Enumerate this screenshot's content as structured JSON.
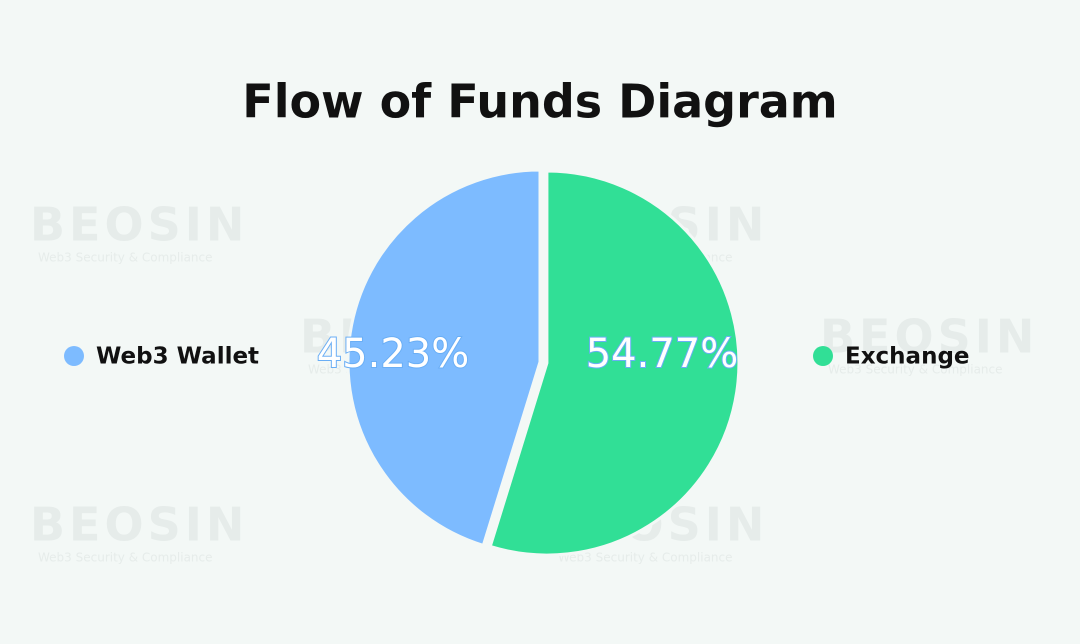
{
  "chart_data": {
    "type": "pie",
    "title": "Flow of Funds Diagram",
    "categories": [
      "Web3 Wallet",
      "Exchange"
    ],
    "values": [
      45.23,
      54.77
    ],
    "value_labels": [
      "45.23%",
      "54.77%"
    ],
    "colors": [
      "#7dbbff",
      "#31df96"
    ]
  },
  "watermark": {
    "name": "BEOSIN",
    "tagline": "Web3 Security & Compliance"
  }
}
